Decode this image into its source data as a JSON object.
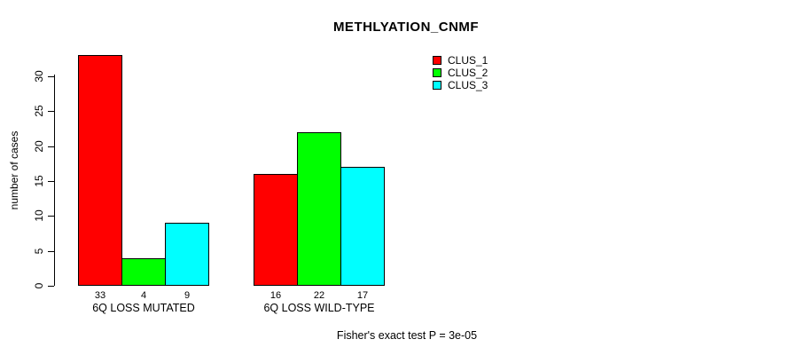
{
  "title": "METHLYATION_CNMF",
  "caption": "Fisher's exact test P = 3e-05",
  "legend": {
    "items": [
      {
        "label": "CLUS_1",
        "color": "#FF0000"
      },
      {
        "label": "CLUS_2",
        "color": "#00FF00"
      },
      {
        "label": "CLUS_3",
        "color": "#00FFFF"
      }
    ]
  },
  "chart_data": {
    "type": "bar",
    "title": "METHLYATION_CNMF",
    "categories": [
      "6Q LOSS MUTATED",
      "6Q LOSS WILD-TYPE"
    ],
    "series": [
      {
        "name": "CLUS_1",
        "color": "#FF0000",
        "values": [
          33,
          16
        ]
      },
      {
        "name": "CLUS_2",
        "color": "#00FF00",
        "values": [
          4,
          22
        ]
      },
      {
        "name": "CLUS_3",
        "color": "#00FFFF",
        "values": [
          9,
          17
        ]
      }
    ],
    "bar_value_labels": [
      [
        "33",
        "4",
        "9"
      ],
      [
        "16",
        "22",
        "17"
      ]
    ],
    "xlabel": "",
    "ylabel": "number of cases",
    "ylim": [
      0,
      30
    ],
    "yticks": [
      0,
      5,
      10,
      15,
      20,
      25,
      30
    ],
    "grid": false,
    "legend_position": "top-right",
    "annotation": "Fisher's exact test P = 3e-05",
    "bar_border_color": "#000000",
    "background_color": "#FFFFFF"
  }
}
